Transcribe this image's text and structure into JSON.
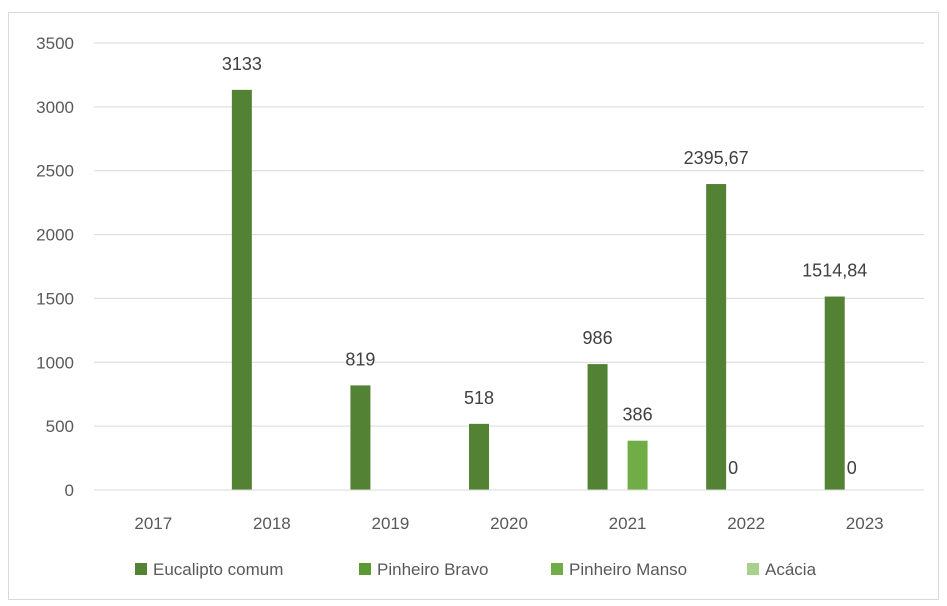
{
  "chart_data": {
    "type": "bar",
    "categories": [
      "2017",
      "2018",
      "2019",
      "2020",
      "2021",
      "2022",
      "2023"
    ],
    "series": [
      {
        "name": "Eucalipto comum",
        "color": "#548235",
        "values": [
          null,
          3133,
          819,
          518,
          986,
          2395.67,
          1514.84
        ],
        "labels": [
          "",
          "3133",
          "819",
          "518",
          "986",
          "2395,67",
          "1514,84"
        ]
      },
      {
        "name": "Pinheiro Bravo",
        "color": "#5b9a32",
        "values": [
          null,
          null,
          null,
          null,
          null,
          0,
          0
        ],
        "labels": [
          "",
          "",
          "",
          "",
          "",
          "0",
          "0"
        ]
      },
      {
        "name": "Pinheiro Manso",
        "color": "#70ad47",
        "values": [
          null,
          null,
          null,
          null,
          386,
          null,
          null
        ],
        "labels": [
          "",
          "",
          "",
          "",
          "386",
          "",
          ""
        ]
      },
      {
        "name": "Acácia",
        "color": "#a9d18e",
        "values": [
          null,
          null,
          null,
          null,
          null,
          null,
          null
        ],
        "labels": [
          "",
          "",
          "",
          "",
          "",
          "",
          ""
        ]
      }
    ],
    "yticks": [
      "0",
      "500",
      "1000",
      "1500",
      "2000",
      "2500",
      "3000",
      "3500"
    ],
    "ylim": [
      0,
      3500
    ],
    "grid": true,
    "legend_position": "bottom"
  }
}
